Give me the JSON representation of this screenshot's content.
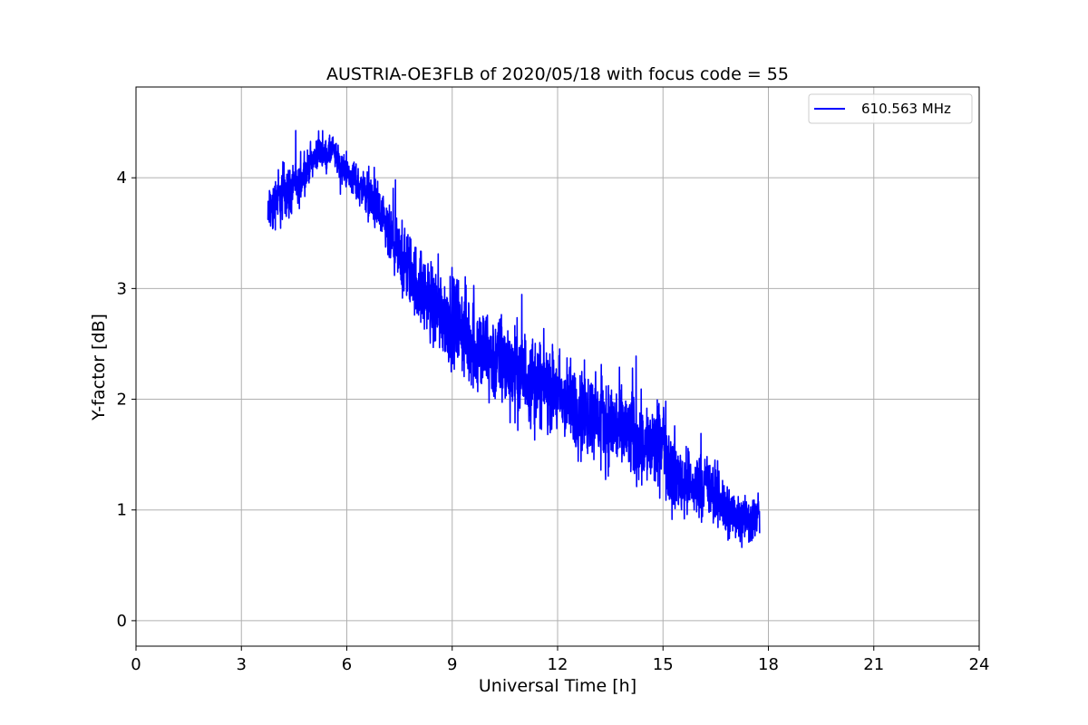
{
  "chart_data": {
    "type": "line",
    "title": "AUSTRIA-OE3FLB of 2020/05/18 with focus code = 55",
    "xlabel": "Universal Time [h]",
    "ylabel": "Y-factor [dB]",
    "xlim": [
      0,
      24
    ],
    "ylim": [
      -0.23,
      4.82
    ],
    "xticks": [
      0,
      3,
      6,
      9,
      12,
      15,
      18,
      21,
      24
    ],
    "yticks": [
      0,
      1,
      2,
      3,
      4
    ],
    "grid": true,
    "legend_position": "top-right",
    "series": [
      {
        "name": "610.563 MHz",
        "color": "#0000ff",
        "x": [
          3.75,
          3.8,
          3.9,
          4.0,
          4.1,
          4.2,
          4.3,
          4.4,
          4.5,
          4.6,
          4.7,
          4.8,
          4.9,
          5.0,
          5.2,
          5.4,
          5.6,
          5.8,
          6.0,
          6.3,
          6.6,
          6.9,
          7.0,
          7.3,
          7.6,
          7.9,
          8.2,
          8.5,
          8.8,
          9.1,
          9.4,
          9.7,
          10.0,
          10.3,
          10.6,
          10.9,
          11.2,
          11.5,
          11.8,
          12.1,
          12.4,
          12.7,
          13.0,
          13.3,
          13.6,
          13.9,
          14.2,
          14.5,
          14.8,
          15.0,
          15.2,
          15.4,
          15.6,
          15.8,
          16.0,
          16.3,
          16.6,
          16.8,
          17.0,
          17.3,
          17.5,
          17.75
        ],
        "y": [
          3.6,
          3.75,
          3.7,
          3.85,
          3.8,
          3.9,
          3.9,
          3.85,
          4.0,
          3.85,
          4.0,
          4.05,
          4.1,
          4.15,
          4.25,
          4.2,
          4.25,
          4.1,
          4.05,
          3.95,
          3.85,
          3.7,
          3.6,
          3.4,
          3.25,
          3.1,
          2.95,
          2.85,
          2.75,
          2.7,
          2.6,
          2.45,
          2.4,
          2.35,
          2.3,
          2.25,
          2.2,
          2.15,
          2.1,
          2.0,
          1.95,
          1.9,
          1.85,
          1.8,
          1.75,
          1.7,
          1.65,
          1.6,
          1.55,
          1.65,
          1.4,
          1.3,
          1.25,
          1.2,
          1.25,
          1.2,
          1.1,
          1.0,
          0.95,
          0.95,
          0.9,
          0.95
        ],
        "noise_amplitude": [
          0.3,
          0.3,
          0.35,
          0.35,
          0.4,
          0.4,
          0.35,
          0.35,
          0.3,
          0.3,
          0.25,
          0.25,
          0.2,
          0.2,
          0.2,
          0.2,
          0.2,
          0.2,
          0.2,
          0.25,
          0.3,
          0.35,
          0.35,
          0.4,
          0.45,
          0.5,
          0.5,
          0.55,
          0.55,
          0.6,
          0.6,
          0.6,
          0.6,
          0.6,
          0.6,
          0.6,
          0.6,
          0.55,
          0.55,
          0.55,
          0.55,
          0.55,
          0.55,
          0.55,
          0.6,
          0.6,
          0.6,
          0.55,
          0.55,
          0.55,
          0.55,
          0.5,
          0.45,
          0.4,
          0.4,
          0.4,
          0.4,
          0.45,
          0.35,
          0.3,
          0.3,
          0.25
        ]
      }
    ]
  }
}
